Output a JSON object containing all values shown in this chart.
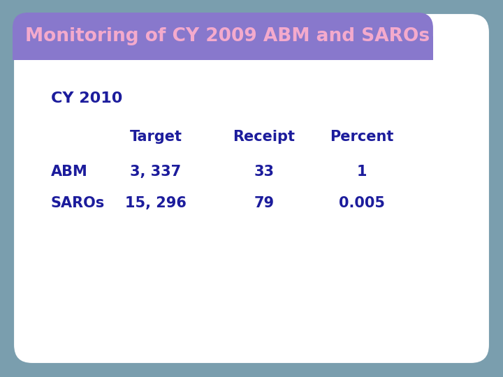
{
  "title": "Monitoring of CY 2009 ABM and SAROs",
  "title_bg_color": "#8878CC",
  "title_text_color": "#F4AACC",
  "outer_bg_color": "#7A9EAE",
  "inner_bg_color": "#FFFFFF",
  "inner_border_color": "#7A9EAE",
  "text_color": "#1C1C9C",
  "subtitle": "CY 2010",
  "col_headers": [
    "Target",
    "Receipt",
    "Percent"
  ],
  "row_labels": [
    "ABM",
    "SAROs"
  ],
  "data": [
    [
      "3, 337",
      "33",
      "1"
    ],
    [
      "15, 296",
      "79",
      "0.005"
    ]
  ],
  "font_size_title": 19,
  "font_size_subtitle": 16,
  "font_size_header": 15,
  "font_size_data": 15
}
